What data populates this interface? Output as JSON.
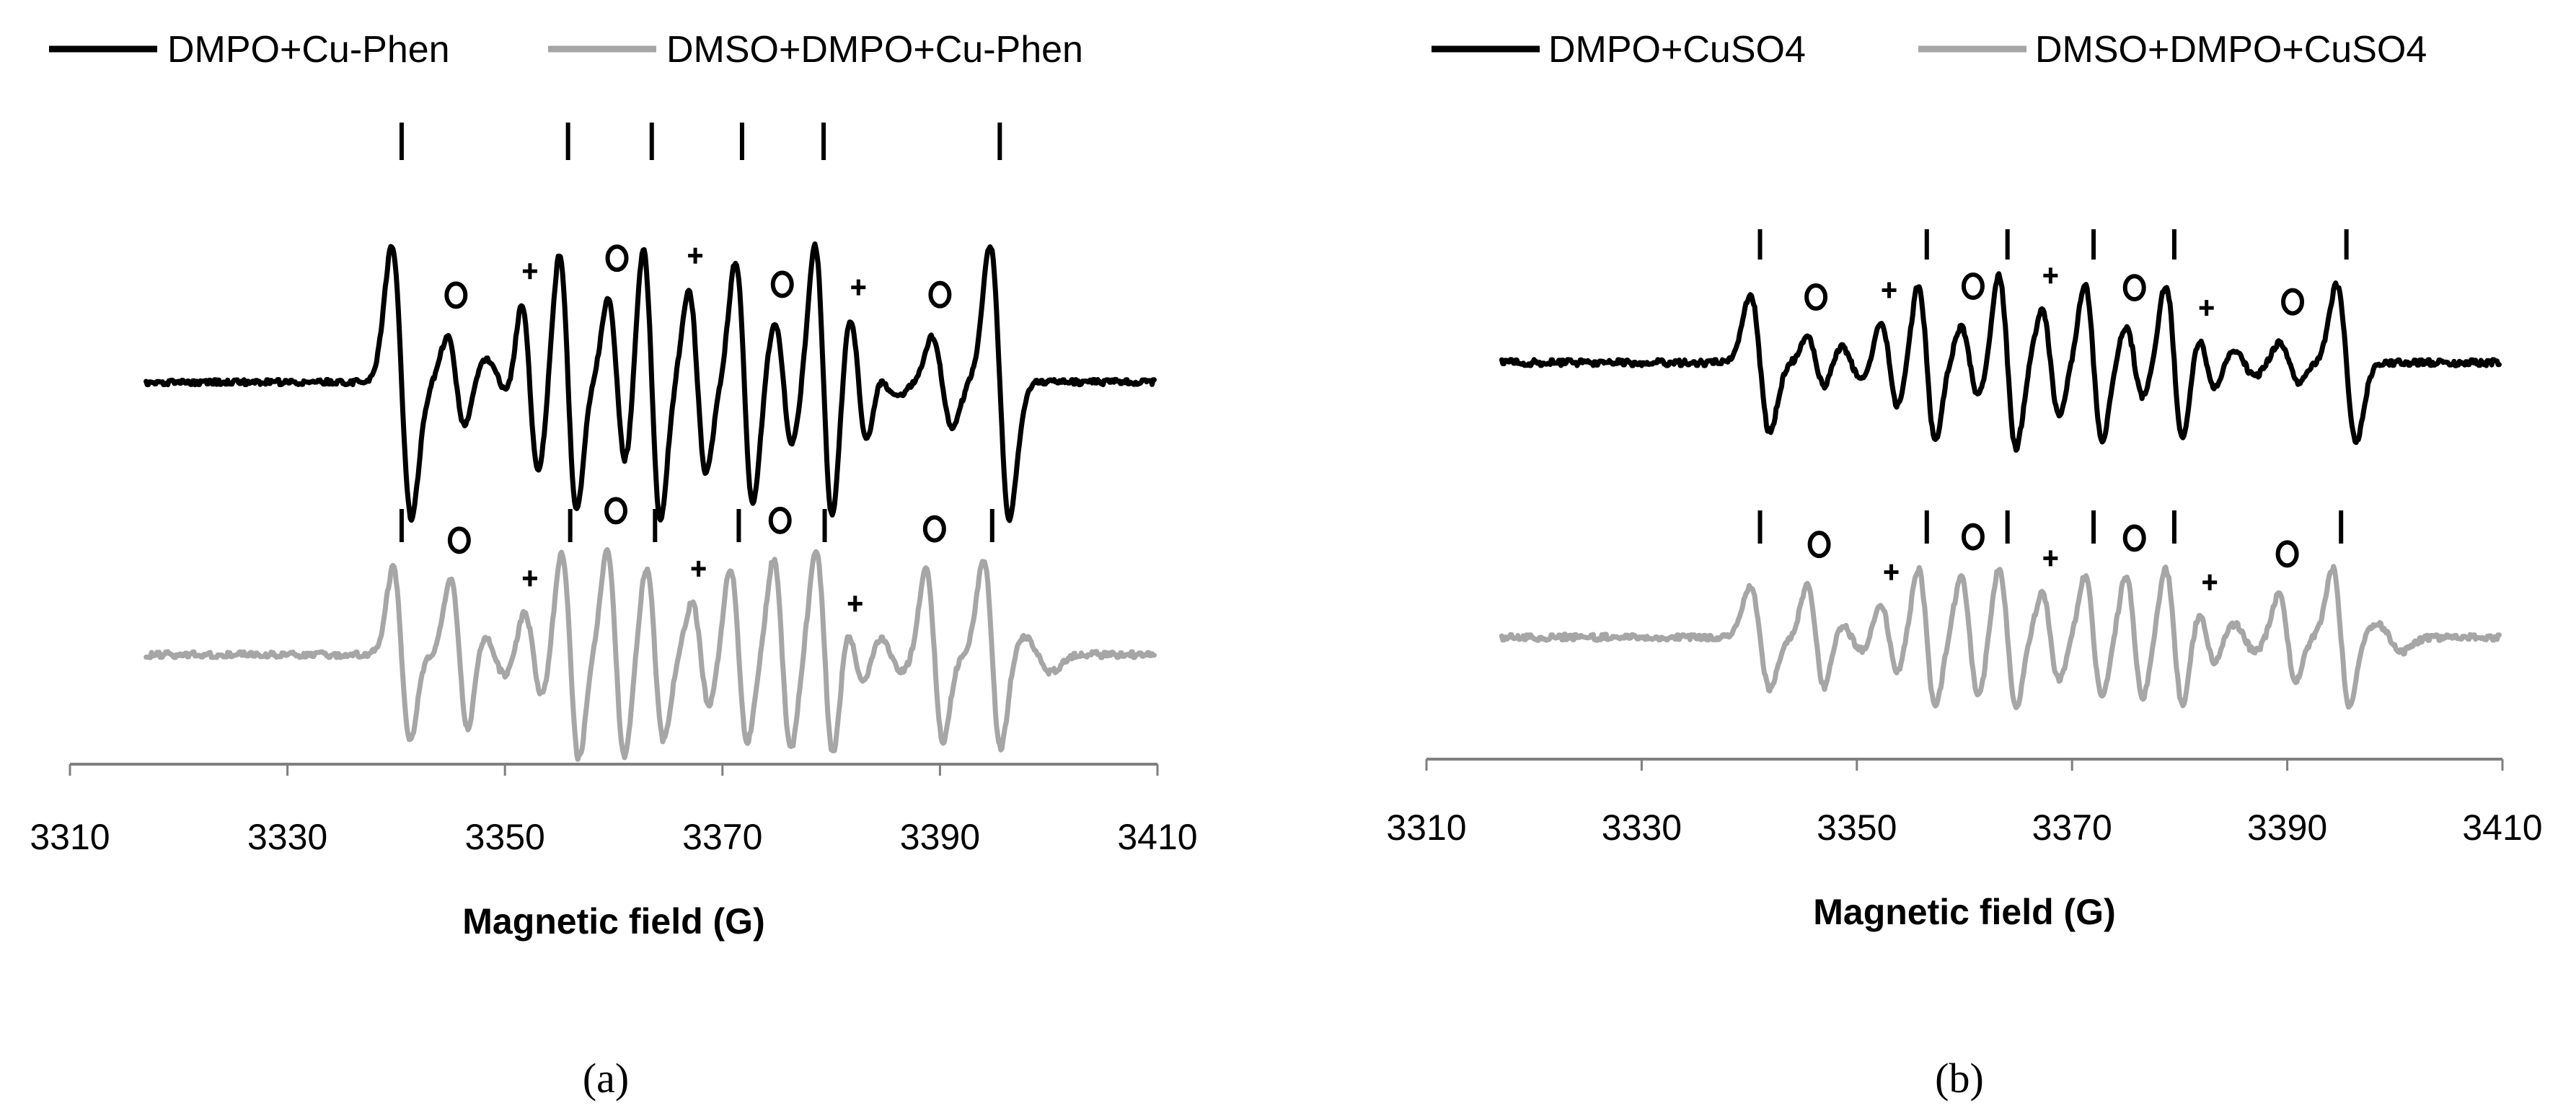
{
  "chart_data": [
    {
      "type": "line",
      "panel_label": "(a)",
      "xlabel": "Magnetic field (G)",
      "ylabel": "",
      "xlim": [
        3310,
        3410
      ],
      "xticks": [
        3310,
        3330,
        3350,
        3370,
        3390,
        3410
      ],
      "legend": "top",
      "series": [
        {
          "name": "DMPO+Cu-Phen",
          "color": "#000000",
          "peaks": [
            {
              "x": 3340.5,
              "a": 9,
              "w": 0.9
            },
            {
              "x": 3345.5,
              "a": 3,
              "w": 0.8
            },
            {
              "x": 3349.5,
              "a": 1.5,
              "w": 1.2
            },
            {
              "x": 3352.3,
              "a": 6,
              "w": 0.8
            },
            {
              "x": 3355.8,
              "a": 8.5,
              "w": 0.8
            },
            {
              "x": 3360.3,
              "a": 5.5,
              "w": 0.8
            },
            {
              "x": 3363.5,
              "a": 9,
              "w": 0.8
            },
            {
              "x": 3367.7,
              "a": 6,
              "w": 0.8
            },
            {
              "x": 3372.0,
              "a": 8,
              "w": 0.8
            },
            {
              "x": 3375.6,
              "a": 4,
              "w": 0.8
            },
            {
              "x": 3379.3,
              "a": 9,
              "w": 0.8
            },
            {
              "x": 3382.5,
              "a": 4.5,
              "w": 0.8
            },
            {
              "x": 3385.0,
              "a": 1,
              "w": 1.0
            },
            {
              "x": 3390.2,
              "a": 3,
              "w": 0.9
            },
            {
              "x": 3395.5,
              "a": 9,
              "w": 0.9
            }
          ]
        },
        {
          "name": "DMSO+DMPO+Cu-Phen",
          "color": "#a6a6a6",
          "peaks": [
            {
              "x": 3340.5,
              "a": 5,
              "w": 0.8
            },
            {
              "x": 3345.8,
              "a": 4.5,
              "w": 0.8
            },
            {
              "x": 3349.0,
              "a": 1.2,
              "w": 1.0
            },
            {
              "x": 3352.6,
              "a": 2.5,
              "w": 0.8
            },
            {
              "x": 3356.0,
              "a": 6,
              "w": 0.8
            },
            {
              "x": 3360.2,
              "a": 6,
              "w": 0.8
            },
            {
              "x": 3363.8,
              "a": 5,
              "w": 0.8
            },
            {
              "x": 3368.0,
              "a": 3,
              "w": 0.8
            },
            {
              "x": 3371.5,
              "a": 5,
              "w": 0.8
            },
            {
              "x": 3375.5,
              "a": 5.5,
              "w": 0.8
            },
            {
              "x": 3379.4,
              "a": 6,
              "w": 0.8
            },
            {
              "x": 3382.2,
              "a": 1.8,
              "w": 0.8
            },
            {
              "x": 3385.5,
              "a": 1,
              "w": 1.0
            },
            {
              "x": 3389.5,
              "a": 5,
              "w": 0.8
            },
            {
              "x": 3394.8,
              "a": 5.5,
              "w": 0.8
            },
            {
              "x": 3399.0,
              "a": 1,
              "w": 1.2
            }
          ]
        }
      ],
      "annotations": [
        {
          "trace": 0,
          "kind": "bar",
          "x": 3340.5
        },
        {
          "trace": 0,
          "kind": "bar",
          "x": 3355.8
        },
        {
          "trace": 0,
          "kind": "bar",
          "x": 3363.5
        },
        {
          "trace": 0,
          "kind": "bar",
          "x": 3371.8
        },
        {
          "trace": 0,
          "kind": "bar",
          "x": 3379.3
        },
        {
          "trace": 0,
          "kind": "bar",
          "x": 3395.5
        },
        {
          "trace": 0,
          "kind": "circle",
          "x": 3345.5
        },
        {
          "trace": 0,
          "kind": "circle",
          "x": 3360.3
        },
        {
          "trace": 0,
          "kind": "circle",
          "x": 3375.5
        },
        {
          "trace": 0,
          "kind": "circle",
          "x": 3390.0
        },
        {
          "trace": 0,
          "kind": "plus",
          "x": 3352.3
        },
        {
          "trace": 0,
          "kind": "plus",
          "x": 3367.5
        },
        {
          "trace": 0,
          "kind": "plus",
          "x": 3382.5
        },
        {
          "trace": 1,
          "kind": "bar",
          "x": 3340.5
        },
        {
          "trace": 1,
          "kind": "bar",
          "x": 3356.0
        },
        {
          "trace": 1,
          "kind": "bar",
          "x": 3363.8
        },
        {
          "trace": 1,
          "kind": "bar",
          "x": 3371.5
        },
        {
          "trace": 1,
          "kind": "bar",
          "x": 3379.4
        },
        {
          "trace": 1,
          "kind": "bar",
          "x": 3394.8
        },
        {
          "trace": 1,
          "kind": "circle",
          "x": 3345.8
        },
        {
          "trace": 1,
          "kind": "circle",
          "x": 3360.2
        },
        {
          "trace": 1,
          "kind": "circle",
          "x": 3375.3
        },
        {
          "trace": 1,
          "kind": "circle",
          "x": 3389.5
        },
        {
          "trace": 1,
          "kind": "plus",
          "x": 3352.3
        },
        {
          "trace": 1,
          "kind": "plus",
          "x": 3367.8
        },
        {
          "trace": 1,
          "kind": "plus",
          "x": 3382.2
        }
      ]
    },
    {
      "type": "line",
      "panel_label": "(b)",
      "xlabel": "Magnetic field (G)",
      "ylabel": "",
      "xlim": [
        3310,
        3410
      ],
      "xticks": [
        3310,
        3330,
        3350,
        3370,
        3390,
        3410
      ],
      "legend": "top",
      "series": [
        {
          "name": "DMPO+CuSO4",
          "color": "#000000",
          "peaks": [
            {
              "x": 3341.0,
              "a": 4,
              "w": 0.9
            },
            {
              "x": 3346.2,
              "a": 1.5,
              "w": 0.8
            },
            {
              "x": 3349.5,
              "a": 1,
              "w": 1.0
            },
            {
              "x": 3353.0,
              "a": 2.5,
              "w": 0.8
            },
            {
              "x": 3356.5,
              "a": 4.5,
              "w": 0.8
            },
            {
              "x": 3360.5,
              "a": 2,
              "w": 0.8
            },
            {
              "x": 3364.0,
              "a": 5,
              "w": 0.8
            },
            {
              "x": 3368.0,
              "a": 3,
              "w": 0.8
            },
            {
              "x": 3372.0,
              "a": 4.5,
              "w": 0.8
            },
            {
              "x": 3375.8,
              "a": 2,
              "w": 0.8
            },
            {
              "x": 3379.5,
              "a": 4.5,
              "w": 0.8
            },
            {
              "x": 3382.5,
              "a": 1.5,
              "w": 0.8
            },
            {
              "x": 3386.0,
              "a": 0.8,
              "w": 1.0
            },
            {
              "x": 3390.2,
              "a": 1.2,
              "w": 0.9
            },
            {
              "x": 3395.5,
              "a": 4.5,
              "w": 0.9
            }
          ]
        },
        {
          "name": "DMSO+DMPO+CuSO4",
          "color": "#a6a6a6",
          "peaks": [
            {
              "x": 3341.0,
              "a": 3,
              "w": 0.9
            },
            {
              "x": 3346.2,
              "a": 3,
              "w": 0.8
            },
            {
              "x": 3349.5,
              "a": 0.8,
              "w": 1.0
            },
            {
              "x": 3353.0,
              "a": 2,
              "w": 0.8
            },
            {
              "x": 3356.5,
              "a": 4,
              "w": 0.8
            },
            {
              "x": 3360.5,
              "a": 3.5,
              "w": 0.8
            },
            {
              "x": 3364.0,
              "a": 4,
              "w": 0.8
            },
            {
              "x": 3368.0,
              "a": 2.5,
              "w": 0.8
            },
            {
              "x": 3372.0,
              "a": 3.5,
              "w": 0.8
            },
            {
              "x": 3375.8,
              "a": 3.5,
              "w": 0.8
            },
            {
              "x": 3379.5,
              "a": 4,
              "w": 0.8
            },
            {
              "x": 3382.5,
              "a": 1.5,
              "w": 0.8
            },
            {
              "x": 3386.0,
              "a": 0.8,
              "w": 1.0
            },
            {
              "x": 3390.0,
              "a": 2.5,
              "w": 0.8
            },
            {
              "x": 3395.0,
              "a": 4,
              "w": 0.8
            },
            {
              "x": 3399.5,
              "a": 0.8,
              "w": 1.2
            }
          ]
        }
      ],
      "annotations": [
        {
          "trace": 0,
          "kind": "bar",
          "x": 3341.0
        },
        {
          "trace": 0,
          "kind": "bar",
          "x": 3356.5
        },
        {
          "trace": 0,
          "kind": "bar",
          "x": 3364.0
        },
        {
          "trace": 0,
          "kind": "bar",
          "x": 3372.0
        },
        {
          "trace": 0,
          "kind": "bar",
          "x": 3379.5
        },
        {
          "trace": 0,
          "kind": "bar",
          "x": 3395.5
        },
        {
          "trace": 0,
          "kind": "circle",
          "x": 3346.2
        },
        {
          "trace": 0,
          "kind": "circle",
          "x": 3360.8
        },
        {
          "trace": 0,
          "kind": "circle",
          "x": 3375.8
        },
        {
          "trace": 0,
          "kind": "circle",
          "x": 3390.5
        },
        {
          "trace": 0,
          "kind": "plus",
          "x": 3353.0
        },
        {
          "trace": 0,
          "kind": "plus",
          "x": 3368.0
        },
        {
          "trace": 0,
          "kind": "plus",
          "x": 3382.5
        },
        {
          "trace": 1,
          "kind": "bar",
          "x": 3341.0
        },
        {
          "trace": 1,
          "kind": "bar",
          "x": 3356.5
        },
        {
          "trace": 1,
          "kind": "bar",
          "x": 3364.0
        },
        {
          "trace": 1,
          "kind": "bar",
          "x": 3372.0
        },
        {
          "trace": 1,
          "kind": "bar",
          "x": 3379.5
        },
        {
          "trace": 1,
          "kind": "bar",
          "x": 3395.0
        },
        {
          "trace": 1,
          "kind": "circle",
          "x": 3346.5
        },
        {
          "trace": 1,
          "kind": "circle",
          "x": 3360.8
        },
        {
          "trace": 1,
          "kind": "circle",
          "x": 3375.8
        },
        {
          "trace": 1,
          "kind": "circle",
          "x": 3390.0
        },
        {
          "trace": 1,
          "kind": "plus",
          "x": 3353.2
        },
        {
          "trace": 1,
          "kind": "plus",
          "x": 3368.0
        },
        {
          "trace": 1,
          "kind": "plus",
          "x": 3382.8
        }
      ]
    }
  ]
}
